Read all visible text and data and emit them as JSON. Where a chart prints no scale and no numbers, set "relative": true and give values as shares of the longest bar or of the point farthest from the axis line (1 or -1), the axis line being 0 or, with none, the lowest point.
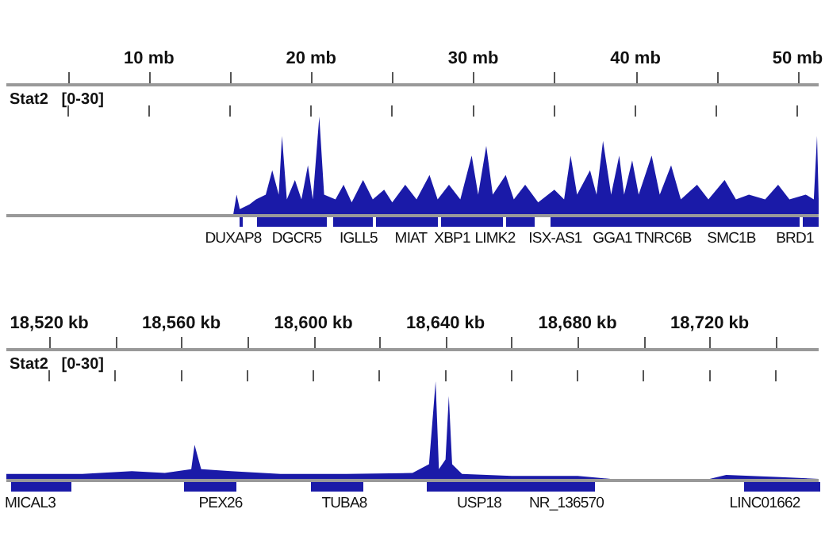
{
  "chart_data": [
    {
      "type": "area",
      "relative": true,
      "ylabel": "Stat2   [0-30]",
      "grid": false,
      "legend": false,
      "xlim": [
        1.2,
        51.3
      ],
      "xticks": [
        {
          "value": 5,
          "label": null
        },
        {
          "value": 10,
          "label": "10 mb"
        },
        {
          "value": 15,
          "label": null
        },
        {
          "value": 20,
          "label": "20 mb"
        },
        {
          "value": 25,
          "label": null
        },
        {
          "value": 30,
          "label": "30 mb"
        },
        {
          "value": 35,
          "label": null
        },
        {
          "value": 40,
          "label": "40 mb"
        },
        {
          "value": 45,
          "label": null
        },
        {
          "value": 50,
          "label": "50 mb"
        }
      ],
      "series": [
        {
          "color": "#1a1aa8",
          "x": [
            1.2,
            15.2,
            15.4,
            15.6,
            16.2,
            16.6,
            17.2,
            17.6,
            18.0,
            18.2,
            18.5,
            19.0,
            19.4,
            19.8,
            20.1,
            20.5,
            20.8,
            21.5,
            22.0,
            22.5,
            23.2,
            23.8,
            24.5,
            25.0,
            25.8,
            26.5,
            27.3,
            27.8,
            28.5,
            29.2,
            29.9,
            30.3,
            30.8,
            31.2,
            32.0,
            32.5,
            33.2,
            34.0,
            35.0,
            35.6,
            36.0,
            36.4,
            37.2,
            37.6,
            38.0,
            38.5,
            39.0,
            39.3,
            39.8,
            40.2,
            41.0,
            41.5,
            42.2,
            42.8,
            43.8,
            44.5,
            45.5,
            46.2,
            47.0,
            48.0,
            48.8,
            49.5,
            50.5,
            51.0,
            51.2,
            51.3
          ],
          "values": [
            0,
            0,
            0.2,
            0.05,
            0.1,
            0.15,
            0.2,
            0.45,
            0.2,
            0.8,
            0.15,
            0.35,
            0.15,
            0.5,
            0.15,
            1.0,
            0.2,
            0.15,
            0.3,
            0.12,
            0.35,
            0.15,
            0.25,
            0.12,
            0.3,
            0.15,
            0.4,
            0.15,
            0.3,
            0.15,
            0.6,
            0.2,
            0.7,
            0.2,
            0.4,
            0.15,
            0.3,
            0.12,
            0.25,
            0.15,
            0.6,
            0.2,
            0.45,
            0.2,
            0.75,
            0.2,
            0.6,
            0.2,
            0.55,
            0.2,
            0.6,
            0.2,
            0.5,
            0.15,
            0.3,
            0.15,
            0.35,
            0.15,
            0.2,
            0.15,
            0.3,
            0.15,
            0.2,
            0.15,
            0.8,
            0.15
          ]
        }
      ],
      "annotations": [
        "DUXAP8",
        "DGCR5",
        "IGLL5",
        "MIAT",
        "XBP1",
        "LIMK2",
        "ISX-AS1",
        "GGA1",
        "TNRC6B",
        "SMC1B",
        "BRD1"
      ]
    },
    {
      "type": "area",
      "relative": true,
      "ylabel": "Stat2   [0-30]",
      "grid": false,
      "legend": false,
      "xlim": [
        18507,
        18753
      ],
      "xticks": [
        {
          "value": 18520,
          "label": "18,520 kb"
        },
        {
          "value": 18540,
          "label": null
        },
        {
          "value": 18560,
          "label": "18,560 kb"
        },
        {
          "value": 18580,
          "label": null
        },
        {
          "value": 18600,
          "label": "18,600 kb"
        },
        {
          "value": 18620,
          "label": null
        },
        {
          "value": 18640,
          "label": "18,640 kb"
        },
        {
          "value": 18660,
          "label": null
        },
        {
          "value": 18680,
          "label": "18,680 kb"
        },
        {
          "value": 18700,
          "label": null
        },
        {
          "value": 18720,
          "label": "18,720 kb"
        },
        {
          "value": 18740,
          "label": null
        }
      ],
      "series": [
        {
          "color": "#1a1aa8",
          "x": [
            18507,
            18530,
            18545,
            18555,
            18563,
            18564,
            18566,
            18575,
            18590,
            18610,
            18630,
            18635,
            18637,
            18638,
            18640,
            18641,
            18642,
            18645,
            18660,
            18680,
            18690,
            18720,
            18725,
            18740,
            18753
          ],
          "values": [
            0.05,
            0.05,
            0.08,
            0.06,
            0.1,
            0.35,
            0.1,
            0.08,
            0.05,
            0.05,
            0.06,
            0.15,
            1.0,
            0.1,
            0.2,
            0.85,
            0.15,
            0.05,
            0.03,
            0.03,
            0,
            0,
            0.04,
            0.02,
            0
          ]
        }
      ],
      "annotations": [
        "MICAL3",
        "PEX26",
        "TUBA8",
        "USP18",
        "NR_136570",
        "LINC01662"
      ]
    }
  ]
}
